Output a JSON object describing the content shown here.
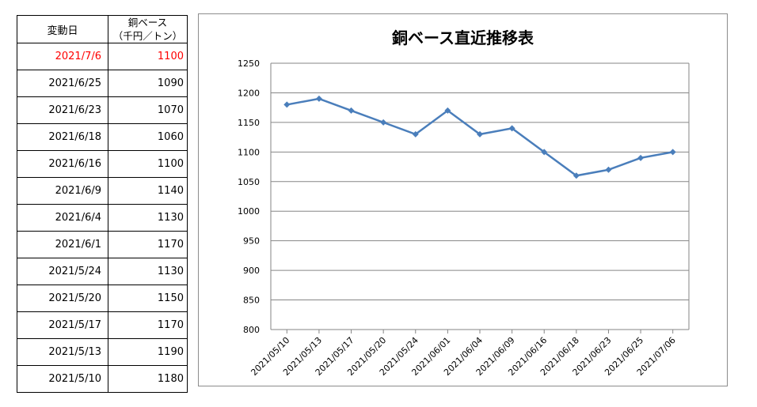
{
  "table": {
    "headers": [
      "変動日",
      "銅ベース",
      "（千円／トン）"
    ],
    "rows": [
      {
        "date": "2021/7/6",
        "value": "1100",
        "highlight": true
      },
      {
        "date": "2021/6/25",
        "value": "1090"
      },
      {
        "date": "2021/6/23",
        "value": "1070"
      },
      {
        "date": "2021/6/18",
        "value": "1060"
      },
      {
        "date": "2021/6/16",
        "value": "1100"
      },
      {
        "date": "2021/6/9",
        "value": "1140"
      },
      {
        "date": "2021/6/4",
        "value": "1130"
      },
      {
        "date": "2021/6/1",
        "value": "1170"
      },
      {
        "date": "2021/5/24",
        "value": "1130"
      },
      {
        "date": "2021/5/20",
        "value": "1150"
      },
      {
        "date": "2021/5/17",
        "value": "1170"
      },
      {
        "date": "2021/5/13",
        "value": "1190"
      },
      {
        "date": "2021/5/10",
        "value": "1180"
      }
    ],
    "highlight_color": "#ff0000"
  },
  "chart_data": {
    "type": "line",
    "title": "銅ベース直近推移表",
    "xlabel": "",
    "ylabel": "",
    "categories": [
      "2021/05/10",
      "2021/05/13",
      "2021/05/17",
      "2021/05/20",
      "2021/05/24",
      "2021/06/01",
      "2021/06/04",
      "2021/06/09",
      "2021/06/16",
      "2021/06/18",
      "2021/06/23",
      "2021/06/25",
      "2021/07/06"
    ],
    "series": [
      {
        "values": [
          1180,
          1190,
          1170,
          1150,
          1130,
          1170,
          1130,
          1140,
          1100,
          1060,
          1070,
          1090,
          1100
        ],
        "color": "#4a7ebb"
      }
    ],
    "ylim": [
      800,
      1250
    ],
    "yticks": [
      800,
      850,
      900,
      950,
      1000,
      1050,
      1100,
      1150,
      1200,
      1250
    ],
    "grid": true,
    "legend": "none"
  }
}
